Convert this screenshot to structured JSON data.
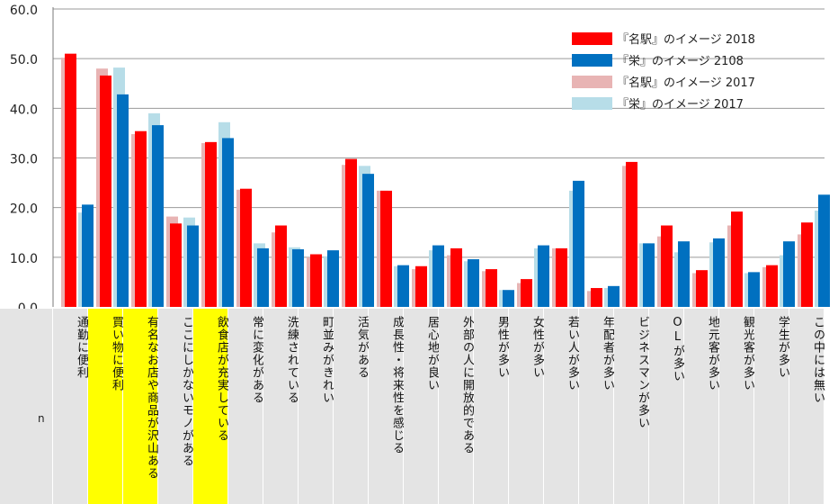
{
  "chart_data": {
    "type": "bar",
    "title": "",
    "xlabel": "",
    "ylabel": "",
    "ylim": [
      0,
      60
    ],
    "yticks": [
      "0.0",
      "10.0",
      "20.0",
      "30.0",
      "40.0",
      "50.0",
      "60.0"
    ],
    "grid": true,
    "legend_position": "top-right",
    "row_label": "n",
    "categories": [
      "通勤に便利",
      "買い物に便利",
      "有名なお店や商品が沢山ある",
      "ここにしかないモノがある",
      "飲食店が充実している",
      "常に変化がある",
      "洗練されている",
      "町並みがきれい",
      "活気がある",
      "成長性・将来性を感じる",
      "居心地が良い",
      "外部の人に開放的である",
      "男性が多い",
      "女性が多い",
      "若い人が多い",
      "年配者が多い",
      "ビジネスマンが多い",
      "OLが多い",
      "地元客が多い",
      "観光客が多い",
      "学生が多い",
      "この中には無い"
    ],
    "highlighted_categories": [
      1,
      2,
      4
    ],
    "series": [
      {
        "name": "『名駅』のイメージ 2017",
        "color": "#e8b4b4",
        "values": [
          50.2,
          48.0,
          34.8,
          18.2,
          33.0,
          23.6,
          15.0,
          10.0,
          28.6,
          23.4,
          7.6,
          10.4,
          7.2,
          4.8,
          11.8,
          3.2,
          28.4,
          14.2,
          6.8,
          16.4,
          8.0,
          14.6
        ]
      },
      {
        "name": "『名駅』のイメージ 2018",
        "color": "#ff0000",
        "values": [
          51.0,
          46.6,
          35.4,
          16.8,
          33.2,
          23.8,
          16.4,
          10.6,
          29.8,
          23.4,
          8.2,
          11.8,
          7.6,
          5.6,
          11.8,
          3.8,
          29.2,
          16.4,
          7.4,
          19.2,
          8.4,
          17.0
        ]
      },
      {
        "name": "『栄』のイメージ 2017",
        "color": "#b7dde8",
        "values": [
          19.0,
          48.2,
          39.0,
          18.0,
          37.2,
          12.8,
          12.0,
          10.2,
          28.4,
          8.2,
          11.4,
          9.2,
          3.4,
          11.8,
          23.4,
          3.8,
          12.8,
          11.0,
          13.0,
          6.8,
          10.4,
          19.4
        ]
      },
      {
        "name": "『栄』のイメージ 2108",
        "color": "#0070c0",
        "values": [
          20.6,
          42.8,
          36.6,
          16.4,
          34.0,
          11.8,
          11.6,
          11.4,
          26.8,
          8.4,
          12.4,
          9.6,
          3.4,
          12.4,
          25.4,
          4.2,
          12.8,
          13.2,
          13.8,
          7.0,
          13.2,
          22.6
        ]
      }
    ],
    "legend_order": [
      "『名駅』のイメージ 2018",
      "『栄』のイメージ 2108",
      "『名駅』のイメージ 2017",
      "『栄』のイメージ 2017"
    ]
  }
}
